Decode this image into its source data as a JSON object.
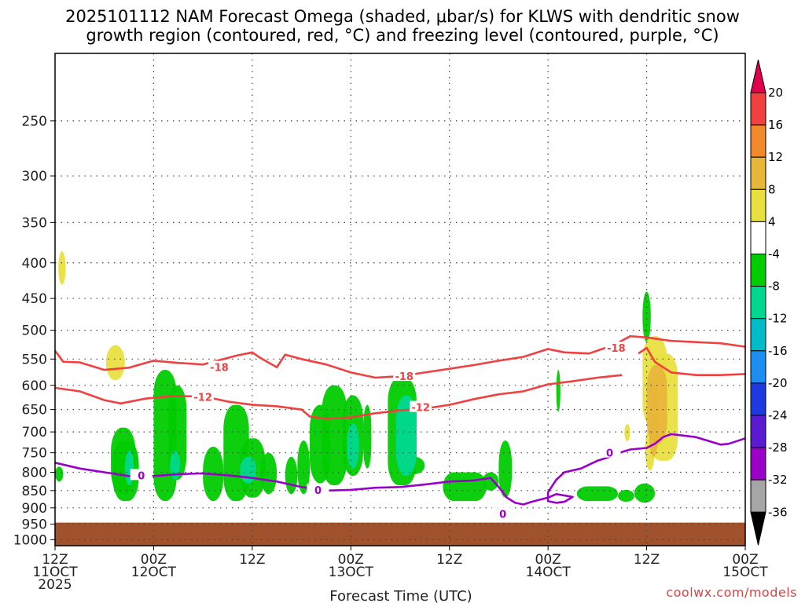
{
  "title_line1": "2025101112 NAM Forecast Omega (shaded, μbar/s) for KLWS with dendritic snow",
  "title_line2": "growth region (contoured, red, °C) and freezing level (contoured, purple, °C)",
  "watermark": "coolwx.com/models",
  "chart_data": {
    "type": "contour_time_height",
    "xlabel": "Forecast Time (UTC)",
    "ylabel": "",
    "x_range_hours": [
      0,
      84
    ],
    "y_range_hpa": [
      1020,
      200
    ],
    "x_ticks": [
      {
        "hour": 0,
        "label1": "12Z",
        "label2": "11OCT",
        "label3": "2025"
      },
      {
        "hour": 12,
        "label1": "00Z",
        "label2": "12OCT",
        "label3": ""
      },
      {
        "hour": 24,
        "label1": "12Z",
        "label2": "",
        "label3": ""
      },
      {
        "hour": 36,
        "label1": "00Z",
        "label2": "13OCT",
        "label3": ""
      },
      {
        "hour": 48,
        "label1": "12Z",
        "label2": "",
        "label3": ""
      },
      {
        "hour": 60,
        "label1": "00Z",
        "label2": "14OCT",
        "label3": ""
      },
      {
        "hour": 72,
        "label1": "12Z",
        "label2": "",
        "label3": ""
      },
      {
        "hour": 84,
        "label1": "00Z",
        "label2": "15OCT",
        "label3": ""
      }
    ],
    "y_ticks": [
      250,
      300,
      350,
      400,
      450,
      500,
      550,
      600,
      650,
      700,
      750,
      800,
      850,
      900,
      950,
      1000
    ],
    "grid": true,
    "terrain_top_hpa": 945,
    "colorbar": {
      "labels": [
        "20",
        "16",
        "12",
        "8",
        "4",
        "-4",
        "-8",
        "-12",
        "-16",
        "-20",
        "-24",
        "-28",
        "-32",
        "-36"
      ],
      "colors": [
        "#e0004c",
        "#f04040",
        "#f08a2c",
        "#e8b63a",
        "#e8e040",
        "#ffffff",
        "#00cc00",
        "#00d890",
        "#00bcc8",
        "#1c8ef0",
        "#1c3ae0",
        "#5a1ad0",
        "#9a00c8",
        "#a6a6a6",
        "#000000"
      ]
    },
    "contours": [
      {
        "name": "-18",
        "color": "#f04040",
        "label": "-18",
        "points": [
          [
            0,
            535
          ],
          [
            1,
            555
          ],
          [
            3,
            556
          ],
          [
            6,
            570
          ],
          [
            9,
            566
          ],
          [
            12,
            553
          ],
          [
            15,
            557
          ],
          [
            18,
            560
          ],
          [
            22,
            544
          ],
          [
            24,
            538
          ],
          [
            25,
            548
          ],
          [
            27,
            565
          ],
          [
            28,
            542
          ],
          [
            30,
            550
          ],
          [
            33,
            560
          ],
          [
            36,
            575
          ],
          [
            39,
            585
          ],
          [
            42,
            582
          ],
          [
            45,
            575
          ],
          [
            48,
            568
          ],
          [
            51,
            561
          ],
          [
            54,
            553
          ],
          [
            57,
            546
          ],
          [
            60,
            532
          ],
          [
            62,
            538
          ],
          [
            65,
            540
          ],
          [
            68,
            525
          ],
          [
            70,
            510
          ],
          [
            72,
            512
          ],
          [
            75,
            518
          ],
          [
            78,
            520
          ],
          [
            81,
            522
          ],
          [
            84,
            528
          ]
        ],
        "label_positions": [
          [
            20,
            565
          ],
          [
            42.5,
            582
          ],
          [
            68.3,
            530
          ]
        ]
      },
      {
        "name": "-18 lower",
        "color": "#f04040",
        "label": "",
        "points": [
          [
            71,
            540
          ],
          [
            72,
            530
          ],
          [
            73,
            555
          ],
          [
            75,
            575
          ],
          [
            78,
            580
          ],
          [
            81,
            580
          ],
          [
            84,
            578
          ]
        ],
        "label_positions": []
      },
      {
        "name": "-12",
        "color": "#f04040",
        "label": "-12",
        "points": [
          [
            0,
            605
          ],
          [
            3,
            612
          ],
          [
            6,
            630
          ],
          [
            8,
            637
          ],
          [
            11,
            627
          ],
          [
            14,
            622
          ],
          [
            18,
            622
          ],
          [
            21,
            633
          ],
          [
            24,
            640
          ],
          [
            27,
            643
          ],
          [
            30,
            650
          ],
          [
            31,
            665
          ],
          [
            33,
            670
          ],
          [
            36,
            667
          ],
          [
            39,
            658
          ],
          [
            42,
            652
          ],
          [
            45,
            648
          ],
          [
            48,
            640
          ],
          [
            51,
            628
          ],
          [
            54,
            618
          ],
          [
            57,
            612
          ],
          [
            60,
            598
          ],
          [
            63,
            592
          ],
          [
            66,
            585
          ],
          [
            69,
            580
          ]
        ],
        "label_positions": [
          [
            18,
            623
          ],
          [
            44.5,
            645
          ]
        ]
      },
      {
        "name": "0",
        "color": "#9a00c8",
        "label": "0",
        "points": [
          [
            0,
            775
          ],
          [
            3,
            790
          ],
          [
            6,
            800
          ],
          [
            9,
            810
          ],
          [
            12,
            810
          ],
          [
            15,
            805
          ],
          [
            18,
            803
          ],
          [
            21,
            808
          ],
          [
            24,
            815
          ],
          [
            27,
            825
          ],
          [
            30,
            840
          ],
          [
            33,
            850
          ],
          [
            36,
            848
          ],
          [
            39,
            842
          ],
          [
            42,
            840
          ],
          [
            45,
            833
          ],
          [
            48,
            825
          ],
          [
            51,
            822
          ],
          [
            53,
            815
          ],
          [
            54,
            840
          ],
          [
            55,
            870
          ],
          [
            56,
            885
          ],
          [
            57,
            890
          ],
          [
            58,
            882
          ],
          [
            60,
            870
          ],
          [
            61,
            860
          ],
          [
            63,
            868
          ],
          [
            62,
            882
          ],
          [
            61,
            885
          ],
          [
            60,
            880
          ],
          [
            60,
            870
          ],
          [
            60,
            855
          ],
          [
            61,
            820
          ],
          [
            62,
            800
          ],
          [
            64,
            790
          ],
          [
            66,
            770
          ],
          [
            68,
            757
          ],
          [
            69,
            748
          ],
          [
            70,
            742
          ],
          [
            72,
            738
          ],
          [
            73,
            728
          ],
          [
            74,
            712
          ],
          [
            75,
            705
          ],
          [
            78,
            712
          ],
          [
            81,
            730
          ],
          [
            82,
            728
          ],
          [
            84,
            715
          ]
        ],
        "label_positions": [
          [
            10.5,
            808
          ],
          [
            32,
            848
          ],
          [
            54.5,
            918
          ],
          [
            67.5,
            750
          ]
        ]
      }
    ],
    "shaded_regions": [
      {
        "name": "green cells",
        "color": "#00cc00",
        "cells": [
          [
            0,
            1,
            785,
            825
          ],
          [
            6.8,
            9.8,
            690,
            860
          ],
          [
            7,
            10.2,
            720,
            880
          ],
          [
            12,
            14.8,
            570,
            880
          ],
          [
            13.8,
            16,
            600,
            820
          ],
          [
            18,
            20.5,
            735,
            880
          ],
          [
            20.5,
            23.6,
            640,
            880
          ],
          [
            22.5,
            25.6,
            715,
            870
          ],
          [
            25,
            27,
            750,
            860
          ],
          [
            28,
            29.5,
            760,
            860
          ],
          [
            29.5,
            31,
            720,
            860
          ],
          [
            31,
            33.5,
            640,
            830
          ],
          [
            32.5,
            35.5,
            600,
            835
          ],
          [
            35,
            37.5,
            620,
            810
          ],
          [
            37.5,
            38.5,
            640,
            790
          ],
          [
            40.5,
            44,
            585,
            835
          ],
          [
            42.5,
            45,
            760,
            805
          ],
          [
            47.2,
            52.5,
            800,
            880
          ],
          [
            52,
            54,
            800,
            850
          ],
          [
            54,
            55.6,
            720,
            870
          ],
          [
            61,
            61.5,
            570,
            655
          ],
          [
            63.5,
            68.5,
            838,
            880
          ],
          [
            68.5,
            70.5,
            848,
            882
          ],
          [
            70.5,
            73,
            830,
            885
          ],
          [
            71.5,
            72.5,
            440,
            520
          ]
        ]
      },
      {
        "name": "teal cores",
        "color": "#00d890",
        "cells": [
          [
            8.5,
            9.6,
            745,
            835
          ],
          [
            14,
            15.2,
            745,
            820
          ],
          [
            22.5,
            24.5,
            760,
            830
          ],
          [
            35.5,
            37,
            680,
            790
          ],
          [
            41.5,
            44,
            620,
            810
          ]
        ]
      },
      {
        "name": "yellow cells",
        "color": "#e8e040",
        "cells": [
          [
            0.4,
            1.3,
            385,
            430
          ],
          [
            6.2,
            8.5,
            525,
            590
          ],
          [
            69.3,
            70,
            682,
            722
          ],
          [
            71.5,
            74.5,
            510,
            690
          ],
          [
            72.3,
            75.8,
            540,
            770
          ],
          [
            71.8,
            73,
            690,
            795
          ]
        ]
      },
      {
        "name": "orange cores",
        "color": "#e8b63a",
        "cells": [
          [
            72,
            74.5,
            560,
            730
          ],
          [
            72.3,
            73.4,
            590,
            760
          ]
        ]
      }
    ]
  }
}
